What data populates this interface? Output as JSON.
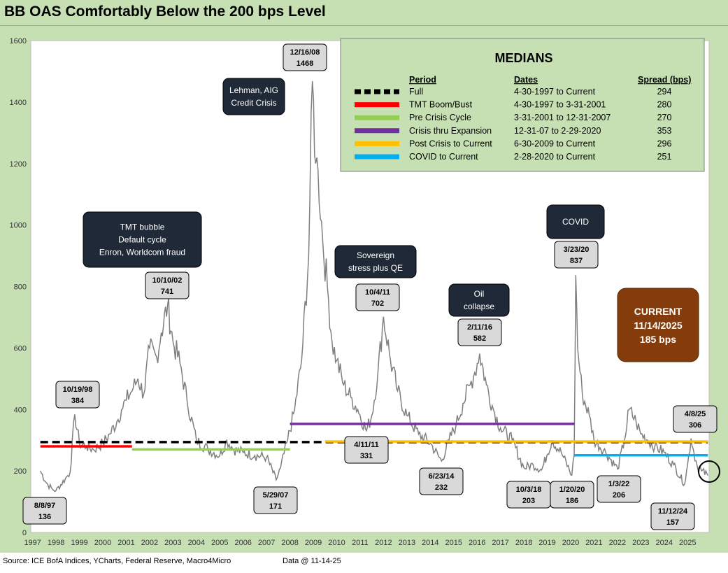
{
  "title": "BB OAS Comfortably Below the 200 bps Level",
  "footer": {
    "source": "Source: ICE BofA Indices, YCharts, Federal Reserve, Macro4Micro",
    "data_as_of": "Data @ 11-14-25"
  },
  "colors": {
    "background": "#c6e0b4",
    "plot_bg": "#ffffff",
    "series": "#7f7f7f",
    "full": "#000000",
    "tmt": "#ff0000",
    "pre_crisis": "#92d050",
    "crisis_expansion": "#7030a0",
    "post_crisis": "#ffc000",
    "covid": "#00b0f0",
    "callout": "#d9d9d9",
    "dark_box": "#1f2937",
    "current_box": "#843c0c"
  },
  "chart_data": {
    "type": "line",
    "title": "BB OAS Comfortably Below the 200 bps Level",
    "ylim": [
      0,
      1600
    ],
    "yticks": [
      0,
      200,
      400,
      600,
      800,
      1000,
      1200,
      1400,
      1600
    ],
    "xlim": [
      1996.92,
      2025.92
    ],
    "xticks": [
      "1997",
      "1998",
      "1999",
      "2000",
      "2001",
      "2002",
      "2003",
      "2004",
      "2005",
      "2006",
      "2007",
      "2008",
      "2009",
      "2010",
      "2011",
      "2012",
      "2013",
      "2014",
      "2015",
      "2016",
      "2017",
      "2018",
      "2019",
      "2020",
      "2021",
      "2022",
      "2023",
      "2024",
      "2025"
    ],
    "grid": false,
    "series": [
      {
        "x": [
          1997.33,
          1997.6,
          1997.85,
          1998.0,
          1998.4,
          1998.6,
          1998.8,
          1999.0,
          1999.3,
          1999.6,
          2000.0,
          2000.3,
          2000.6,
          2000.8,
          2001.0,
          2001.3,
          2001.5,
          2001.75,
          2002.0,
          2002.3,
          2002.5,
          2002.77,
          2003.0,
          2003.3,
          2003.6,
          2004.0,
          2004.5,
          2005.0,
          2005.3,
          2005.6,
          2006.0,
          2006.5,
          2007.0,
          2007.41,
          2007.6,
          2007.9,
          2008.2,
          2008.5,
          2008.8,
          2008.96,
          2009.1,
          2009.2,
          2009.4,
          2009.6,
          2009.8,
          2010.0,
          2010.3,
          2010.6,
          2010.9,
          2011.27,
          2011.5,
          2011.76,
          2012.0,
          2012.3,
          2012.6,
          2013.0,
          2013.5,
          2014.0,
          2014.48,
          2014.8,
          2015.1,
          2015.4,
          2015.7,
          2015.9,
          2016.11,
          2016.4,
          2016.7,
          2017.0,
          2017.5,
          2018.0,
          2018.4,
          2018.76,
          2018.98,
          2019.2,
          2019.6,
          2020.05,
          2020.15,
          2020.22,
          2020.3,
          2020.5,
          2020.8,
          2021.0,
          2021.5,
          2022.01,
          2022.3,
          2022.5,
          2022.8,
          2023.0,
          2023.3,
          2023.6,
          2024.0,
          2024.4,
          2024.87,
          2025.0,
          2025.15,
          2025.27,
          2025.4,
          2025.6,
          2025.87
        ],
        "y": [
          200,
          160,
          140,
          136,
          175,
          195,
          384,
          290,
          280,
          270,
          290,
          320,
          360,
          400,
          430,
          470,
          500,
          450,
          600,
          570,
          650,
          741,
          620,
          550,
          430,
          300,
          270,
          250,
          300,
          270,
          260,
          250,
          245,
          171,
          210,
          300,
          400,
          560,
          900,
          1468,
          1200,
          1180,
          950,
          800,
          620,
          560,
          480,
          440,
          400,
          331,
          380,
          520,
          702,
          560,
          460,
          380,
          320,
          290,
          232,
          300,
          350,
          420,
          480,
          520,
          582,
          480,
          400,
          340,
          300,
          210,
          220,
          203,
          250,
          300,
          260,
          186,
          250,
          837,
          600,
          450,
          380,
          300,
          260,
          206,
          300,
          400,
          360,
          320,
          300,
          280,
          260,
          220,
          157,
          220,
          306,
          260,
          220,
          200,
          185
        ]
      }
    ],
    "medians": {
      "title": "MEDIANS",
      "headers": [
        "Period",
        "Dates",
        "Spread (bps)"
      ],
      "rows": [
        {
          "period": "Full",
          "dates": "4-30-1997 to Current",
          "spread": 294,
          "color": "#000000",
          "dashed": true,
          "x_start": 1997.33,
          "x_end": 2025.87
        },
        {
          "period": "TMT  Boom/Bust",
          "dates": "4-30-1997  to 3-31-2001",
          "spread": 280,
          "color": "#ff0000",
          "dashed": false,
          "x_start": 1997.33,
          "x_end": 2001.25
        },
        {
          "period": "Pre Crisis Cycle",
          "dates": "3-31-2001  to 12-31-2007",
          "spread": 270,
          "color": "#92d050",
          "dashed": false,
          "x_start": 2001.25,
          "x_end": 2008.0
        },
        {
          "period": "Crisis thru Expansion",
          "dates": "12-31-07 to 2-29-2020",
          "spread": 353,
          "color": "#7030a0",
          "dashed": false,
          "x_start": 2008.0,
          "x_end": 2020.16
        },
        {
          "period": "Post Crisis to Current",
          "dates": "6-30-2009  to Current",
          "spread": 296,
          "color": "#ffc000",
          "dashed": false,
          "x_start": 2009.5,
          "x_end": 2025.87
        },
        {
          "period": "COVID to Current",
          "dates": " 2-28-2020  to Current",
          "spread": 251,
          "color": "#00b0f0",
          "dashed": false,
          "x_start": 2020.16,
          "x_end": 2025.87
        }
      ]
    },
    "point_labels": [
      {
        "date": "8/8/97",
        "value": "136"
      },
      {
        "date": "10/19/98",
        "value": "384"
      },
      {
        "date": "10/10/02",
        "value": "741"
      },
      {
        "date": "5/29/07",
        "value": "171"
      },
      {
        "date": "12/16/08",
        "value": "1468"
      },
      {
        "date": "4/11/11",
        "value": "331"
      },
      {
        "date": "10/4/11",
        "value": "702"
      },
      {
        "date": "6/23/14",
        "value": "232"
      },
      {
        "date": "2/11/16",
        "value": "582"
      },
      {
        "date": "10/3/18",
        "value": "203"
      },
      {
        "date": "1/20/20",
        "value": "186"
      },
      {
        "date": "3/23/20",
        "value": "837"
      },
      {
        "date": "1/3/22",
        "value": "206"
      },
      {
        "date": "11/12/24",
        "value": "157"
      },
      {
        "date": "4/8/25",
        "value": "306"
      }
    ],
    "annotations": [
      {
        "lines": [
          "TMT bubble",
          "Default cycle",
          "Enron, Worldcom fraud"
        ]
      },
      {
        "lines": [
          "Lehman, AIG",
          "Credit Crisis"
        ]
      },
      {
        "lines": [
          "Sovereign",
          "stress plus QE"
        ]
      },
      {
        "lines": [
          "Oil",
          "collapse"
        ]
      },
      {
        "lines": [
          "COVID"
        ]
      }
    ],
    "current": {
      "label": "CURRENT",
      "date": "11/14/2025",
      "value": "185 bps"
    }
  }
}
